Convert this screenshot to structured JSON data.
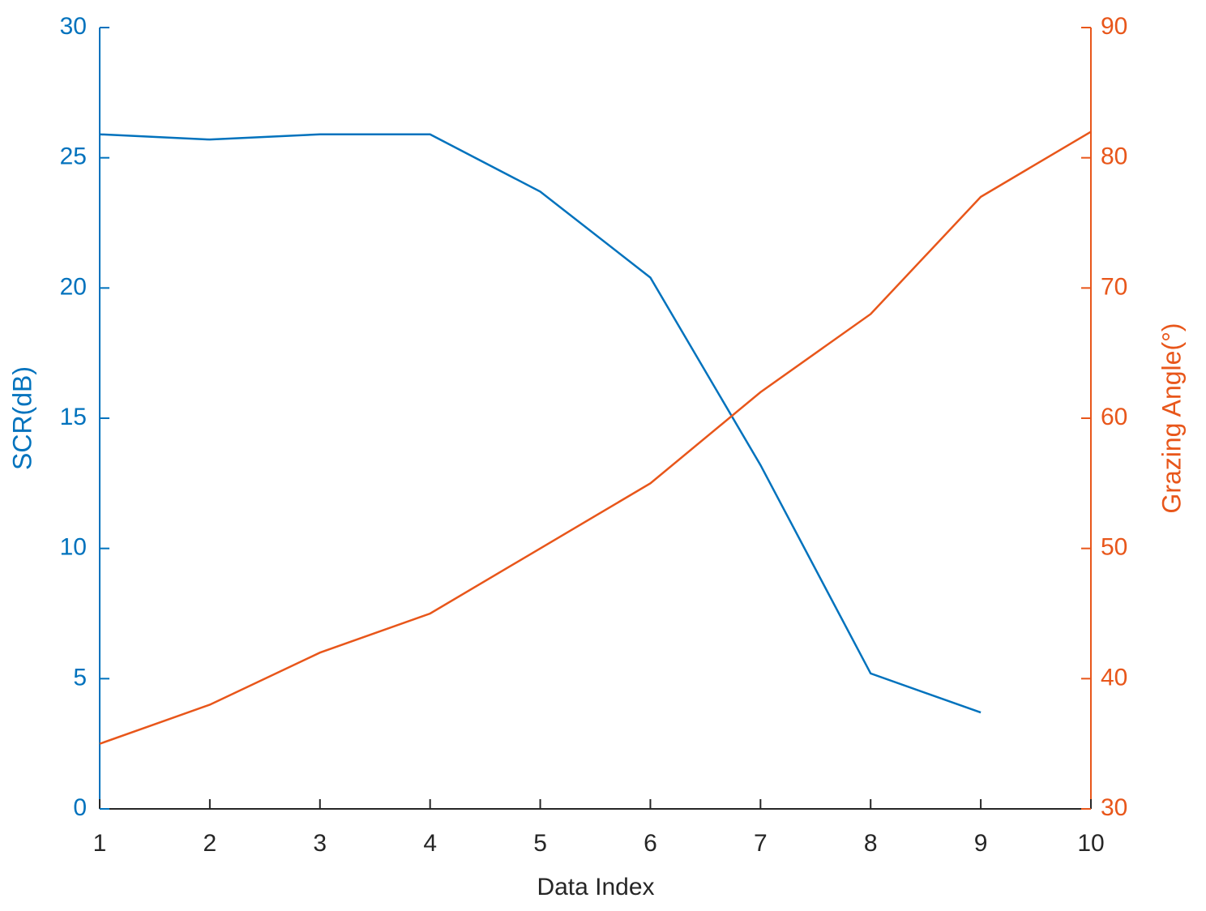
{
  "chart_data": {
    "type": "line",
    "x": [
      1,
      2,
      3,
      4,
      5,
      6,
      7,
      8,
      9,
      10
    ],
    "xlim": [
      1,
      10
    ],
    "xticks": [
      1,
      2,
      3,
      4,
      5,
      6,
      7,
      8,
      9,
      10
    ],
    "ylim": [
      0,
      30
    ],
    "yticks": [
      0,
      5,
      10,
      15,
      20,
      25,
      30
    ],
    "y2lim": [
      30,
      90
    ],
    "y2ticks": [
      30,
      40,
      50,
      60,
      70,
      80,
      90
    ],
    "xlabel": "Data Index",
    "ylabel": "SCR(dB)",
    "y2label": "Grazing Angle(°)",
    "grid": false,
    "series": [
      {
        "name": "SCR(dB)",
        "color": "#0072BD",
        "values": [
          25.9,
          25.7,
          25.9,
          25.9,
          23.7,
          20.4,
          13.2,
          5.2,
          3.7,
          null
        ]
      },
      {
        "name": "Grazing Angle(°)",
        "color": "#E8561A",
        "axis": "y2",
        "values": [
          35,
          38,
          42,
          45,
          50,
          55,
          62,
          68,
          77,
          82
        ]
      }
    ]
  }
}
